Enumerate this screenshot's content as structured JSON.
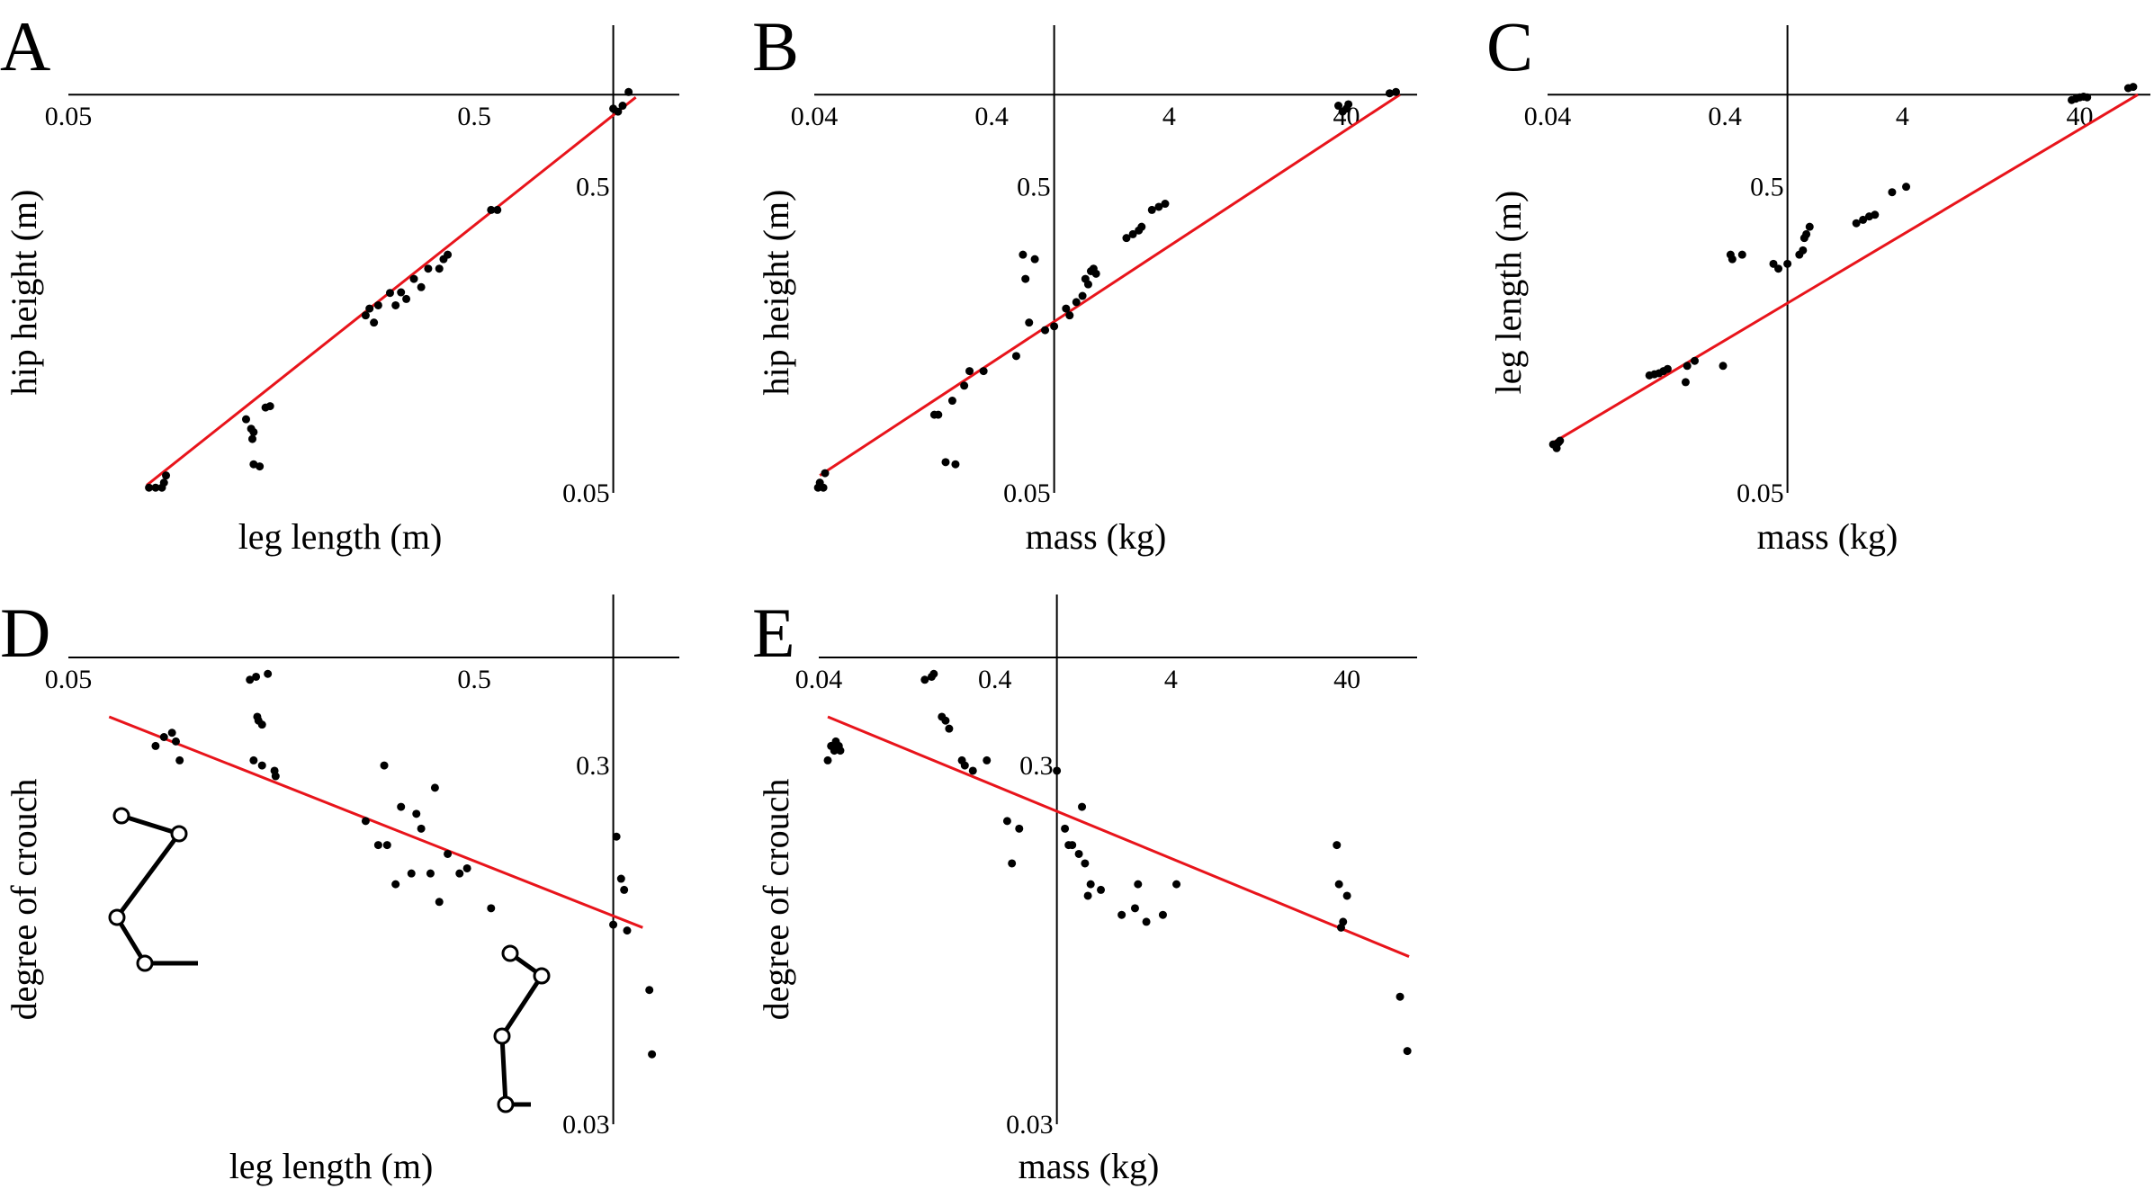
{
  "chart_data": [
    {
      "id": "A",
      "type": "scatter",
      "letter": "A",
      "xlabel": "leg length (m)",
      "ylabel": "hip height (m)",
      "xscale": "log",
      "yscale": "log",
      "xlim": [
        0.05,
        1.6
      ],
      "ylim": [
        0.05,
        1.05
      ],
      "xticks": [
        {
          "v": 0.05,
          "label": "0.05"
        },
        {
          "v": 0.5,
          "label": "0.5"
        }
      ],
      "yticks": [
        {
          "v": 0.05,
          "label": "0.05"
        },
        {
          "v": 0.5,
          "label": "0.5"
        }
      ],
      "y_axis_at_x": 1.1,
      "x_axis_at_y": 1.0,
      "fit": [
        [
          0.078,
          0.053
        ],
        [
          1.25,
          0.98
        ]
      ],
      "points": [
        [
          0.079,
          0.052
        ],
        [
          0.082,
          0.052
        ],
        [
          0.085,
          0.052
        ],
        [
          0.086,
          0.054
        ],
        [
          0.087,
          0.057
        ],
        [
          0.137,
          0.087
        ],
        [
          0.141,
          0.081
        ],
        [
          0.143,
          0.079
        ],
        [
          0.142,
          0.075
        ],
        [
          0.143,
          0.062
        ],
        [
          0.148,
          0.061
        ],
        [
          0.153,
          0.095
        ],
        [
          0.157,
          0.096
        ],
        [
          0.27,
          0.19
        ],
        [
          0.276,
          0.2
        ],
        [
          0.283,
          0.18
        ],
        [
          0.29,
          0.205
        ],
        [
          0.31,
          0.225
        ],
        [
          0.32,
          0.205
        ],
        [
          0.33,
          0.226
        ],
        [
          0.34,
          0.215
        ],
        [
          0.355,
          0.25
        ],
        [
          0.37,
          0.235
        ],
        [
          0.385,
          0.27
        ],
        [
          0.41,
          0.27
        ],
        [
          0.42,
          0.29
        ],
        [
          0.43,
          0.3
        ],
        [
          0.55,
          0.42
        ],
        [
          0.57,
          0.42
        ],
        [
          1.1,
          0.9
        ],
        [
          1.13,
          0.88
        ],
        [
          1.16,
          0.92
        ],
        [
          1.2,
          1.02
        ]
      ]
    },
    {
      "id": "B",
      "type": "scatter",
      "letter": "B",
      "xlabel": "mass (kg)",
      "ylabel": "hip height (m)",
      "xscale": "log",
      "yscale": "log",
      "xlim": [
        0.04,
        100
      ],
      "ylim": [
        0.05,
        1.05
      ],
      "xticks": [
        {
          "v": 0.04,
          "label": "0.04"
        },
        {
          "v": 0.4,
          "label": "0.4"
        },
        {
          "v": 4,
          "label": "4"
        },
        {
          "v": 40,
          "label": "40"
        }
      ],
      "yticks": [
        {
          "v": 0.05,
          "label": "0.05"
        },
        {
          "v": 0.5,
          "label": "0.5"
        }
      ],
      "y_axis_at_x": 0.9,
      "x_axis_at_y": 1.0,
      "fit": [
        [
          0.043,
          0.057
        ],
        [
          80,
          1.0
        ]
      ],
      "points": [
        [
          0.042,
          0.052
        ],
        [
          0.043,
          0.054
        ],
        [
          0.045,
          0.052
        ],
        [
          0.046,
          0.058
        ],
        [
          0.19,
          0.09
        ],
        [
          0.2,
          0.09
        ],
        [
          0.22,
          0.063
        ],
        [
          0.24,
          0.1
        ],
        [
          0.25,
          0.062
        ],
        [
          0.28,
          0.112
        ],
        [
          0.3,
          0.125
        ],
        [
          0.36,
          0.125
        ],
        [
          0.55,
          0.14
        ],
        [
          0.6,
          0.3
        ],
        [
          0.62,
          0.25
        ],
        [
          0.65,
          0.18
        ],
        [
          0.7,
          0.29
        ],
        [
          0.8,
          0.17
        ],
        [
          0.9,
          0.175
        ],
        [
          1.05,
          0.2
        ],
        [
          1.1,
          0.19
        ],
        [
          1.2,
          0.21
        ],
        [
          1.3,
          0.22
        ],
        [
          1.35,
          0.25
        ],
        [
          1.4,
          0.24
        ],
        [
          1.45,
          0.265
        ],
        [
          1.5,
          0.27
        ],
        [
          1.55,
          0.26
        ],
        [
          2.3,
          0.34
        ],
        [
          2.5,
          0.35
        ],
        [
          2.7,
          0.36
        ],
        [
          2.8,
          0.37
        ],
        [
          3.2,
          0.42
        ],
        [
          3.5,
          0.43
        ],
        [
          3.8,
          0.44
        ],
        [
          36,
          0.92
        ],
        [
          38,
          0.88
        ],
        [
          40,
          0.9
        ],
        [
          41,
          0.93
        ],
        [
          70,
          1.01
        ],
        [
          76,
          1.02
        ]
      ]
    },
    {
      "id": "C",
      "type": "scatter",
      "letter": "C",
      "xlabel": "mass (kg)",
      "ylabel": "leg length (m)",
      "xscale": "log",
      "yscale": "log",
      "xlim": [
        0.04,
        100
      ],
      "ylim": [
        0.05,
        1.05
      ],
      "xticks": [
        {
          "v": 0.04,
          "label": "0.04"
        },
        {
          "v": 0.4,
          "label": "0.4"
        },
        {
          "v": 4,
          "label": "4"
        },
        {
          "v": 40,
          "label": "40"
        }
      ],
      "yticks": [
        {
          "v": 0.05,
          "label": "0.05"
        },
        {
          "v": 0.5,
          "label": "0.5"
        }
      ],
      "y_axis_at_x": 0.9,
      "x_axis_at_y": 1.0,
      "fit": [
        [
          0.043,
          0.073
        ],
        [
          85,
          1.0
        ]
      ],
      "points": [
        [
          0.043,
          0.072
        ],
        [
          0.045,
          0.07
        ],
        [
          0.046,
          0.073
        ],
        [
          0.047,
          0.074
        ],
        [
          0.15,
          0.121
        ],
        [
          0.16,
          0.122
        ],
        [
          0.17,
          0.123
        ],
        [
          0.18,
          0.125
        ],
        [
          0.19,
          0.127
        ],
        [
          0.24,
          0.115
        ],
        [
          0.245,
          0.13
        ],
        [
          0.27,
          0.135
        ],
        [
          0.39,
          0.13
        ],
        [
          0.43,
          0.3
        ],
        [
          0.44,
          0.29
        ],
        [
          0.5,
          0.3
        ],
        [
          0.75,
          0.28
        ],
        [
          0.8,
          0.27
        ],
        [
          0.9,
          0.28
        ],
        [
          1.05,
          0.3
        ],
        [
          1.1,
          0.31
        ],
        [
          1.12,
          0.34
        ],
        [
          1.15,
          0.35
        ],
        [
          1.2,
          0.37
        ],
        [
          2.2,
          0.38
        ],
        [
          2.4,
          0.39
        ],
        [
          2.6,
          0.4
        ],
        [
          2.8,
          0.405
        ],
        [
          3.5,
          0.48
        ],
        [
          4.2,
          0.5
        ],
        [
          36,
          0.96
        ],
        [
          38,
          0.97
        ],
        [
          40,
          0.98
        ],
        [
          42,
          0.985
        ],
        [
          44,
          0.98
        ],
        [
          75,
          1.05
        ],
        [
          80,
          1.06
        ]
      ]
    },
    {
      "id": "D",
      "type": "scatter",
      "letter": "D",
      "xlabel": "leg length (m)",
      "ylabel": "degree of crouch",
      "xscale": "log",
      "yscale": "log",
      "xlim": [
        0.05,
        1.6
      ],
      "ylim": [
        0.03,
        0.6
      ],
      "xticks": [
        {
          "v": 0.05,
          "label": "0.05"
        },
        {
          "v": 0.5,
          "label": "0.5"
        }
      ],
      "yticks": [
        {
          "v": 0.03,
          "label": "0.03"
        },
        {
          "v": 0.3,
          "label": "0.3"
        }
      ],
      "y_axis_at_x": 1.1,
      "x_axis_at_y": 0.6,
      "fit": [
        [
          0.063,
          0.41
        ],
        [
          1.3,
          0.106
        ]
      ],
      "points": [
        [
          0.082,
          0.34
        ],
        [
          0.086,
          0.36
        ],
        [
          0.09,
          0.37
        ],
        [
          0.092,
          0.35
        ],
        [
          0.094,
          0.31
        ],
        [
          0.14,
          0.52
        ],
        [
          0.145,
          0.53
        ],
        [
          0.146,
          0.41
        ],
        [
          0.147,
          0.4
        ],
        [
          0.15,
          0.39
        ],
        [
          0.143,
          0.31
        ],
        [
          0.15,
          0.3
        ],
        [
          0.155,
          0.54
        ],
        [
          0.161,
          0.29
        ],
        [
          0.162,
          0.28
        ],
        [
          0.27,
          0.21
        ],
        [
          0.29,
          0.18
        ],
        [
          0.3,
          0.3
        ],
        [
          0.305,
          0.18
        ],
        [
          0.32,
          0.14
        ],
        [
          0.33,
          0.23
        ],
        [
          0.35,
          0.15
        ],
        [
          0.36,
          0.22
        ],
        [
          0.37,
          0.2
        ],
        [
          0.39,
          0.15
        ],
        [
          0.4,
          0.26
        ],
        [
          0.41,
          0.125
        ],
        [
          0.43,
          0.17
        ],
        [
          0.46,
          0.15
        ],
        [
          0.48,
          0.155
        ],
        [
          0.55,
          0.12
        ],
        [
          1.1,
          0.108
        ],
        [
          1.12,
          0.19
        ],
        [
          1.15,
          0.145
        ],
        [
          1.17,
          0.135
        ],
        [
          1.19,
          0.104
        ],
        [
          1.35,
          0.071
        ],
        [
          1.37,
          0.047
        ]
      ]
    },
    {
      "id": "E",
      "type": "scatter",
      "letter": "E",
      "xlabel": "mass (kg)",
      "ylabel": "degree of crouch",
      "xscale": "log",
      "yscale": "log",
      "xlim": [
        0.04,
        100
      ],
      "ylim": [
        0.03,
        0.6
      ],
      "xticks": [
        {
          "v": 0.04,
          "label": "0.04"
        },
        {
          "v": 0.4,
          "label": "0.4"
        },
        {
          "v": 4,
          "label": "4"
        },
        {
          "v": 40,
          "label": "40"
        }
      ],
      "yticks": [
        {
          "v": 0.03,
          "label": "0.03"
        },
        {
          "v": 0.3,
          "label": "0.3"
        }
      ],
      "y_axis_at_x": 0.9,
      "x_axis_at_y": 0.6,
      "fit": [
        [
          0.045,
          0.41
        ],
        [
          90,
          0.088
        ]
      ],
      "points": [
        [
          0.045,
          0.31
        ],
        [
          0.047,
          0.34
        ],
        [
          0.049,
          0.33
        ],
        [
          0.05,
          0.35
        ],
        [
          0.052,
          0.34
        ],
        [
          0.053,
          0.33
        ],
        [
          0.16,
          0.52
        ],
        [
          0.175,
          0.53
        ],
        [
          0.18,
          0.54
        ],
        [
          0.2,
          0.41
        ],
        [
          0.21,
          0.4
        ],
        [
          0.22,
          0.38
        ],
        [
          0.26,
          0.31
        ],
        [
          0.27,
          0.3
        ],
        [
          0.3,
          0.29
        ],
        [
          0.36,
          0.31
        ],
        [
          0.47,
          0.21
        ],
        [
          0.5,
          0.16
        ],
        [
          0.55,
          0.2
        ],
        [
          0.9,
          0.29
        ],
        [
          1.0,
          0.2
        ],
        [
          1.05,
          0.18
        ],
        [
          1.1,
          0.18
        ],
        [
          1.2,
          0.17
        ],
        [
          1.25,
          0.23
        ],
        [
          1.3,
          0.16
        ],
        [
          1.35,
          0.13
        ],
        [
          1.4,
          0.14
        ],
        [
          1.6,
          0.135
        ],
        [
          2.1,
          0.115
        ],
        [
          2.5,
          0.12
        ],
        [
          2.6,
          0.14
        ],
        [
          2.9,
          0.11
        ],
        [
          3.6,
          0.115
        ],
        [
          4.3,
          0.14
        ],
        [
          35,
          0.18
        ],
        [
          36,
          0.14
        ],
        [
          37,
          0.106
        ],
        [
          40,
          0.13
        ],
        [
          38,
          0.11
        ],
        [
          80,
          0.068
        ],
        [
          88,
          0.048
        ]
      ]
    }
  ]
}
